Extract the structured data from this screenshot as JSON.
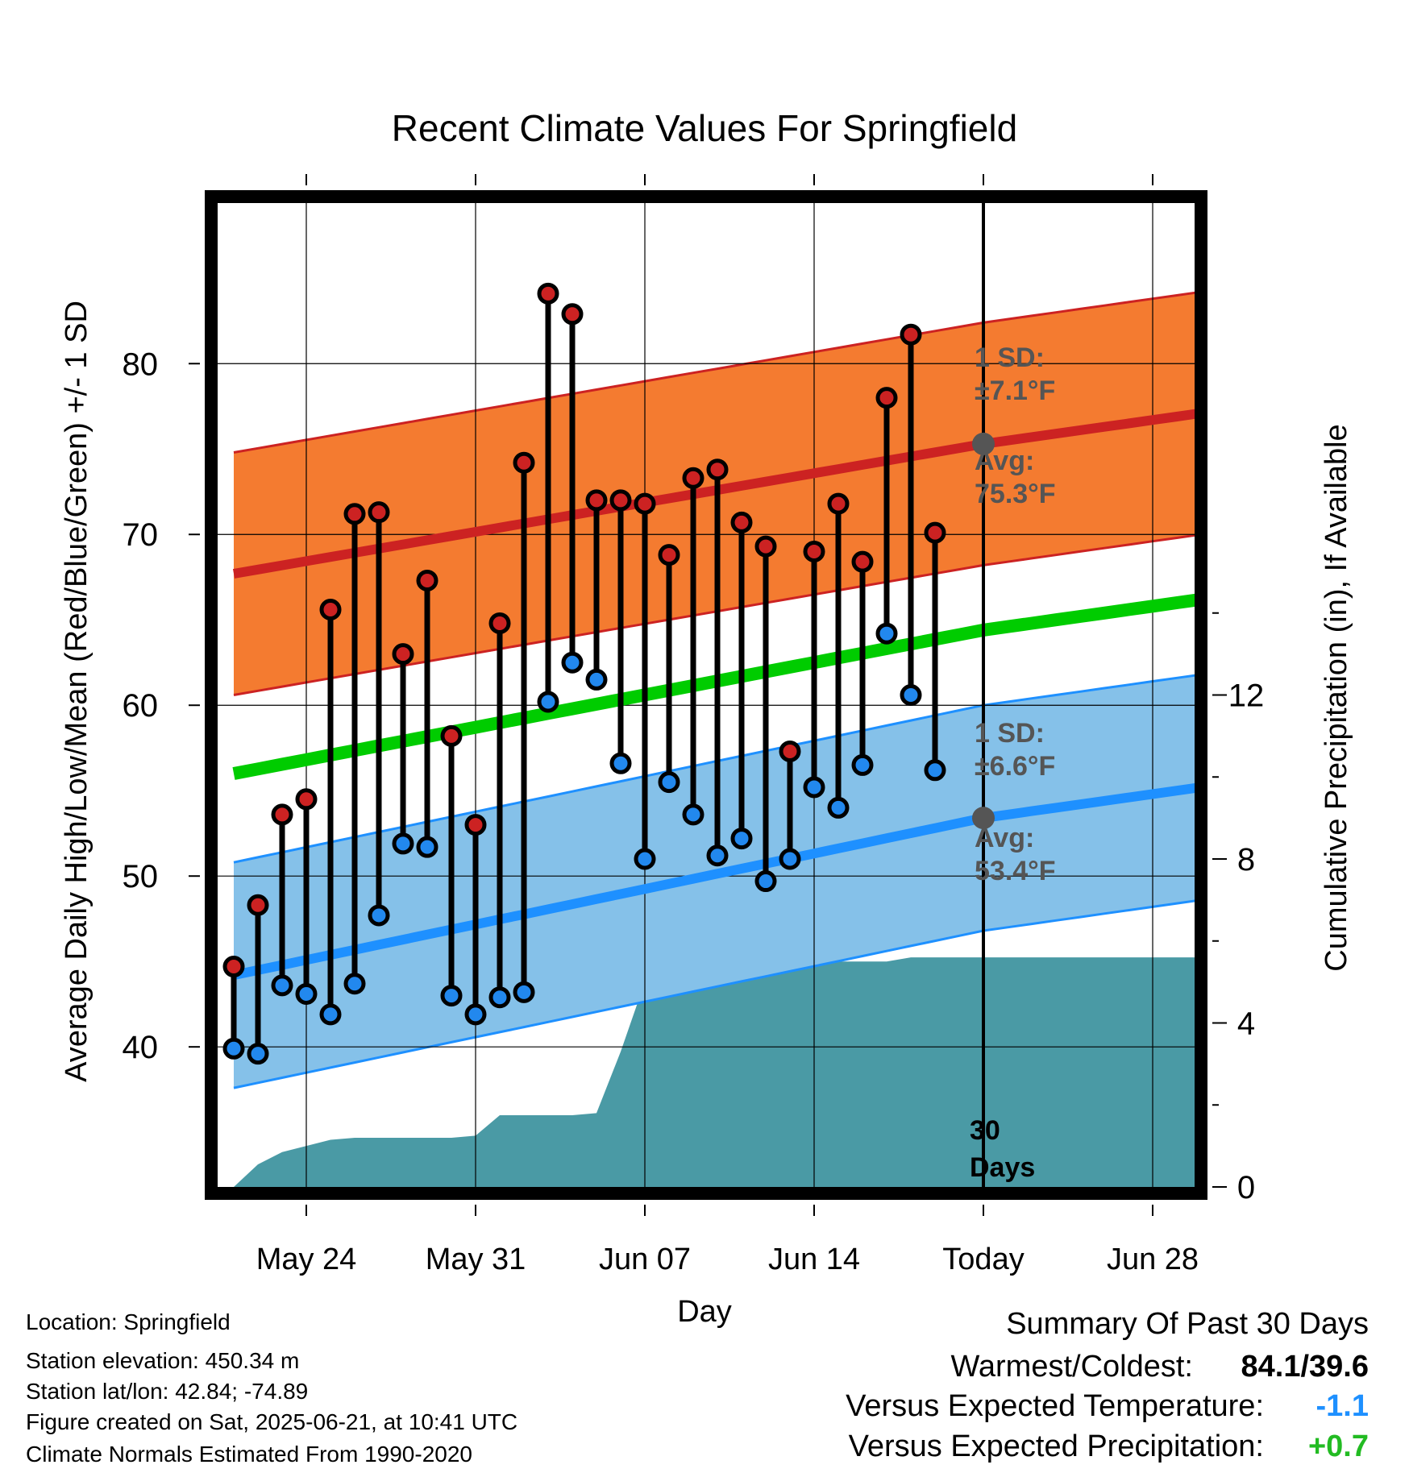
{
  "chart_data": {
    "type": "line",
    "title": "Recent Climate Values For Springfield",
    "xlabel": "Day",
    "ylabel_left": "Average Daily High/Low/Mean (Red/Blue/Green) +/- 1 SD",
    "ylabel_right": "Cumulative Precipitation (in), If Available",
    "x_ticks": [
      "May 24",
      "May 31",
      "Jun 07",
      "Jun 14",
      "Today",
      "Jun 28"
    ],
    "y_ticks_left": [
      40,
      50,
      60,
      70,
      80
    ],
    "y_ticks_right": [
      0,
      4,
      8,
      12
    ],
    "ylim_left": [
      31.8,
      89.4
    ],
    "ylim_right": [
      0,
      24
    ],
    "x_start": "May 21",
    "days": [
      "May 21",
      "May 22",
      "May 23",
      "May 24",
      "May 25",
      "May 26",
      "May 27",
      "May 28",
      "May 29",
      "May 30",
      "May 31",
      "Jun 01",
      "Jun 02",
      "Jun 03",
      "Jun 04",
      "Jun 05",
      "Jun 06",
      "Jun 07",
      "Jun 08",
      "Jun 09",
      "Jun 10",
      "Jun 11",
      "Jun 12",
      "Jun 13",
      "Jun 14",
      "Jun 15",
      "Jun 16",
      "Jun 17",
      "Jun 18",
      "Jun 19",
      "Jun 20",
      "Jun 21",
      "Jun 22",
      "Jun 23",
      "Jun 24",
      "Jun 25",
      "Jun 26",
      "Jun 27",
      "Jun 28",
      "Jun 29",
      "Jun 30",
      "Jul 01"
    ],
    "series": [
      {
        "name": "Daily High",
        "color": "#cc2222",
        "values": [
          44.7,
          48.3,
          53.6,
          54.5,
          65.6,
          71.2,
          71.3,
          63.0,
          67.3,
          58.2,
          53.0,
          64.8,
          74.2,
          84.1,
          82.9,
          72.0,
          72.0,
          71.8,
          68.8,
          73.3,
          73.8,
          70.7,
          69.3,
          57.3,
          69.0,
          71.8,
          68.4,
          78.0,
          81.7,
          70.1
        ]
      },
      {
        "name": "Daily Low",
        "color": "#2288ee",
        "values": [
          39.9,
          39.6,
          43.6,
          43.1,
          41.9,
          43.7,
          47.7,
          51.9,
          51.7,
          43.0,
          41.9,
          42.9,
          43.2,
          60.2,
          62.5,
          61.5,
          56.6,
          51.0,
          55.5,
          53.6,
          51.2,
          52.2,
          49.7,
          51.0,
          55.2,
          54.0,
          56.5,
          64.2,
          60.6,
          56.2
        ]
      },
      {
        "name": "Normal High",
        "color": "#cc2222",
        "x": [
          "May 21",
          "Jun 21",
          "Jul 01"
        ],
        "values": [
          67.7,
          75.3,
          77.3
        ]
      },
      {
        "name": "Normal Low",
        "color": "#1e90ff",
        "x": [
          "May 21",
          "Jun 21",
          "Jul 01"
        ],
        "values": [
          44.2,
          53.4,
          55.4
        ]
      },
      {
        "name": "Normal Mean",
        "color": "#00cc00",
        "x": [
          "May 21",
          "Jun 21",
          "Jul 01"
        ],
        "values": [
          56.0,
          64.4,
          66.4
        ]
      },
      {
        "name": "Cumulative Precipitation (in)",
        "values": [
          0.0,
          0.55,
          0.85,
          1.0,
          1.15,
          1.2,
          1.2,
          1.2,
          1.2,
          1.2,
          1.25,
          1.75,
          1.75,
          1.75,
          1.75,
          1.8,
          3.3,
          5.0,
          5.05,
          5.2,
          5.4,
          5.4,
          5.4,
          5.4,
          5.5,
          5.5,
          5.5,
          5.5,
          5.6,
          5.6,
          5.6,
          5.6,
          5.6,
          5.6,
          5.6,
          5.6,
          5.6,
          5.6,
          5.6,
          5.6,
          5.6,
          5.6
        ]
      }
    ],
    "high_sd": 7.1,
    "low_sd": 6.6,
    "today": "Jun 21",
    "grid": true,
    "annotations": {
      "high_sd_l1": "1 SD:",
      "high_sd_l2": "±7.1°F",
      "high_avg_l1": "Avg:",
      "high_avg_l2": "75.3°F",
      "low_sd_l1": "1 SD:",
      "low_sd_l2": "±6.6°F",
      "low_avg_l1": "Avg:",
      "low_avg_l2": "53.4°F",
      "days_l1": "30",
      "days_l2": "Days"
    }
  },
  "footer": {
    "location": "Location: Springfield",
    "elevation": "Station elevation: 450.34 m",
    "latlon": "Station lat/lon: 42.84; -74.89",
    "created": "Figure created on Sat, 2025-06-21, at 10:41 UTC",
    "normals": "Climate Normals Estimated From 1990-2020"
  },
  "summary": {
    "title": "Summary Of Past 30 Days",
    "warm_cold_label": "Warmest/Coldest:",
    "warm_cold_value": "84.1/39.6",
    "temp_label": "Versus Expected Temperature:",
    "temp_value": "-1.1",
    "temp_color": "#1e90ff",
    "precip_label": "Versus Expected Precipitation:",
    "precip_value": "+0.7",
    "precip_color": "#22bb22"
  }
}
